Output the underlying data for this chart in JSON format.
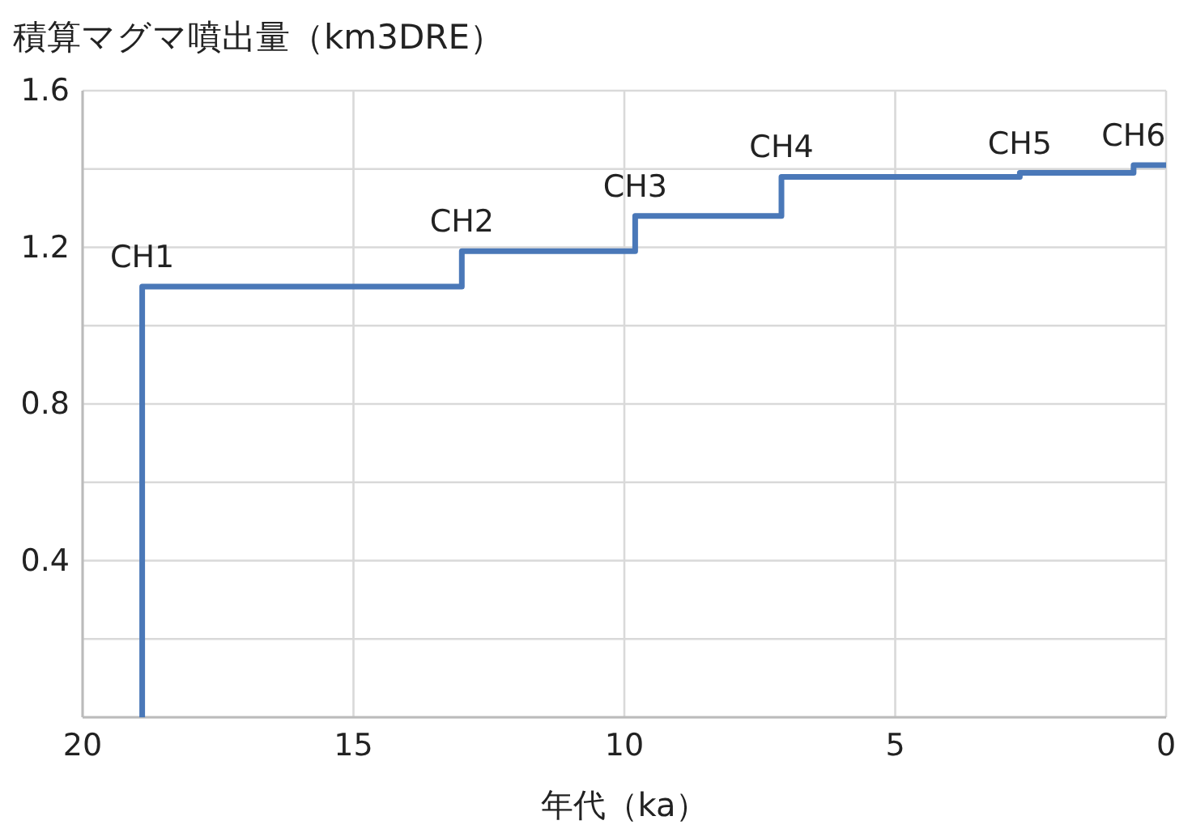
{
  "chart_data": {
    "type": "step",
    "title": "積算マグマ噴出量（km3DRE）",
    "xlabel": "年代（ka）",
    "x": [
      18.9,
      18.9,
      13.0,
      9.8,
      7.1,
      2.7,
      0.6,
      0
    ],
    "series": [
      {
        "color": "#4a78b8",
        "values": [
          0,
          1.1,
          1.19,
          1.28,
          1.38,
          1.39,
          1.41,
          1.41
        ]
      }
    ],
    "xlim": [
      20,
      0
    ],
    "xticks": [
      20,
      15,
      10,
      5,
      0
    ],
    "ylim": [
      0,
      1.6
    ],
    "yticks": [
      {
        "value": 0,
        "label": null
      },
      {
        "value": 0.2,
        "label": null
      },
      0.4,
      {
        "value": 0.6,
        "label": null
      },
      0.8,
      {
        "value": 1.0,
        "label": null
      },
      1.2,
      {
        "value": 1.4,
        "label": null
      },
      1.6
    ],
    "grid": true,
    "marker": "none",
    "line_style": "solid",
    "annotations": [
      {
        "text": "CH1",
        "x": 18.9,
        "y": 1.1
      },
      {
        "text": "CH2",
        "x": 13.0,
        "y": 1.19
      },
      {
        "text": "CH3",
        "x": 9.8,
        "y": 1.28
      },
      {
        "text": "CH4",
        "x": 7.1,
        "y": 1.38
      },
      {
        "text": "CH5",
        "x": 2.7,
        "y": 1.39
      },
      {
        "text": "CH6",
        "x": 0.6,
        "y": 1.41
      }
    ]
  }
}
